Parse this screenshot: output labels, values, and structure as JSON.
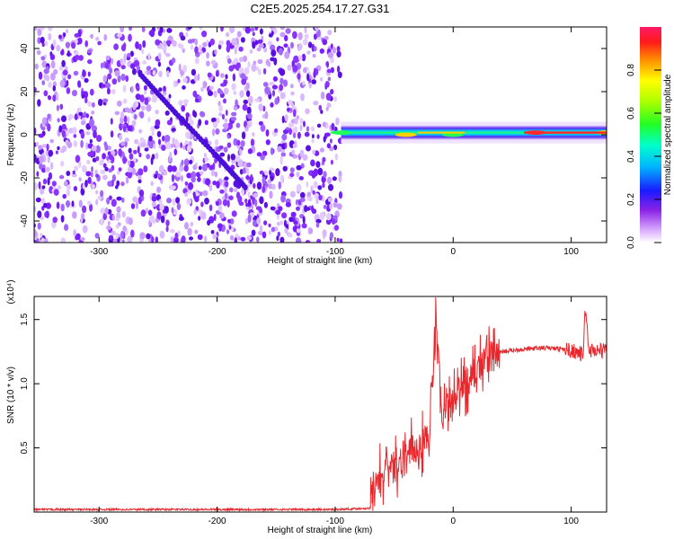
{
  "title": "C2E5.2025.254.17.27.G31",
  "chart_data": [
    {
      "type": "heatmap",
      "xlabel": "Height of straight line (km)",
      "ylabel": "Frequency (Hz)",
      "xlim": [
        -355,
        130
      ],
      "ylim": [
        -50,
        50
      ],
      "xticks": [
        -300,
        -200,
        -100,
        0,
        100
      ],
      "yticks": [
        -40,
        -20,
        0,
        20,
        40
      ],
      "colorbar": {
        "label": "Normalized spectral amplitude",
        "range": [
          0.0,
          1.0
        ],
        "ticks": [
          0.0,
          0.2,
          0.4,
          0.6,
          0.8
        ]
      },
      "noise_region_x": [
        -355,
        -95
      ],
      "signal_band": {
        "x_range": [
          -95,
          130
        ],
        "center_freq_hz": 1,
        "description_points": [
          {
            "x": -95,
            "freq": 1,
            "amp": 0.5
          },
          {
            "x": -40,
            "freq": 0,
            "amp": 0.9
          },
          {
            "x": 0,
            "freq": 0,
            "amp": 0.6
          },
          {
            "x": 70,
            "freq": 1,
            "amp": 0.95
          },
          {
            "x": 130,
            "freq": 1,
            "amp": 0.85
          }
        ]
      },
      "diagonal_feature": [
        {
          "x": -265,
          "freq": 28
        },
        {
          "x": -235,
          "freq": 10
        },
        {
          "x": -200,
          "freq": -10
        },
        {
          "x": -175,
          "freq": -25
        }
      ]
    },
    {
      "type": "line",
      "xlabel": "Height of straight line (km)",
      "ylabel": "SNR (10 * v/v)",
      "y_multiplier": "(x10⁴)",
      "xlim": [
        -355,
        130
      ],
      "ylim": [
        0,
        1.68
      ],
      "xticks": [
        -300,
        -200,
        -100,
        0,
        100
      ],
      "yticks": [
        0.5,
        1.0,
        1.5
      ],
      "series": [
        {
          "name": "SNR",
          "color": "#e8282d",
          "x": [
            -355,
            -300,
            -200,
            -100,
            -70,
            -68,
            -60,
            -50,
            -40,
            -30,
            -20,
            -14,
            -10,
            0,
            10,
            20,
            30,
            40,
            60,
            80,
            100,
            105,
            110,
            112,
            115,
            130
          ],
          "y": [
            0.02,
            0.02,
            0.02,
            0.02,
            0.03,
            0.25,
            0.3,
            0.35,
            0.45,
            0.5,
            0.6,
            1.54,
            0.75,
            0.85,
            1.0,
            1.1,
            1.2,
            1.25,
            1.27,
            1.28,
            1.26,
            1.25,
            1.22,
            1.6,
            1.26,
            1.26
          ]
        }
      ]
    }
  ]
}
